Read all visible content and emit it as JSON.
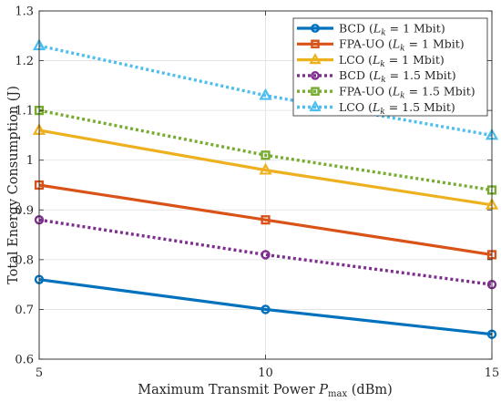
{
  "chart_data": {
    "type": "line",
    "xlabel": "Maximum Transmit Power",
    "xlabel_symbol": "P",
    "xlabel_subscript": "max",
    "xlabel_unit": "(dBm)",
    "ylabel": "Total Energy Consumption (J)",
    "x": [
      5,
      10,
      15
    ],
    "xlim": [
      5,
      15
    ],
    "ylim": [
      0.6,
      1.3
    ],
    "xticks": [
      5,
      10,
      15
    ],
    "yticks": [
      0.6,
      0.7,
      0.8,
      0.9,
      1,
      1.1,
      1.2,
      1.3
    ],
    "xtick_labels": [
      "5",
      "10",
      "15"
    ],
    "ytick_labels": [
      "0.6",
      "0.7",
      "0.8",
      "0.9",
      "1",
      "1.1",
      "1.2",
      "1.3"
    ],
    "grid": true,
    "legend_position": "top-right",
    "series": [
      {
        "name": "BCD",
        "param": "(L",
        "param_sub": "k",
        "param_rest": " = 1 Mbit)",
        "values": [
          0.76,
          0.7,
          0.65
        ],
        "color": "#0072BD",
        "line": "solid",
        "marker": "circle"
      },
      {
        "name": "FPA-UO",
        "param": "(L",
        "param_sub": "k",
        "param_rest": " = 1 Mbit)",
        "values": [
          0.95,
          0.88,
          0.81
        ],
        "color": "#D95319",
        "line": "solid",
        "marker": "square"
      },
      {
        "name": "LCO",
        "param": "(L",
        "param_sub": "k",
        "param_rest": " = 1 Mbit)",
        "values": [
          1.06,
          0.98,
          0.91
        ],
        "color": "#EDB120",
        "line": "solid",
        "marker": "triangle"
      },
      {
        "name": "BCD",
        "param": "(L",
        "param_sub": "k",
        "param_rest": " = 1.5 Mbit)",
        "values": [
          0.88,
          0.81,
          0.75
        ],
        "color": "#7E2F8E",
        "line": "dotted",
        "marker": "circle"
      },
      {
        "name": "FPA-UO",
        "param": "(L",
        "param_sub": "k",
        "param_rest": " = 1.5 Mbit)",
        "values": [
          1.1,
          1.01,
          0.94
        ],
        "color": "#77AC30",
        "line": "dotted",
        "marker": "square"
      },
      {
        "name": "LCO",
        "param": "(L",
        "param_sub": "k",
        "param_rest": " = 1.5 Mbit)",
        "values": [
          1.23,
          1.13,
          1.05
        ],
        "color": "#4DBEEE",
        "line": "dotted",
        "marker": "triangle"
      }
    ]
  }
}
